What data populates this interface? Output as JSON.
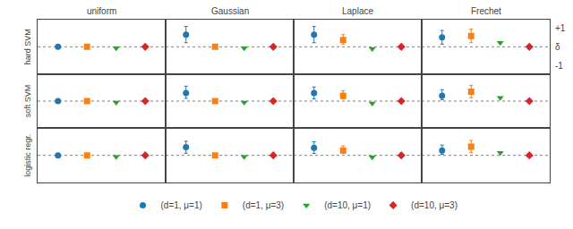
{
  "chart_data": {
    "type": "scatter",
    "columns": [
      "uniform",
      "Gaussian",
      "Laplace",
      "Frechet"
    ],
    "rows": [
      "hard SVM",
      "soft SVM",
      "logistic regr."
    ],
    "right_labels": [
      "+1",
      "δ",
      "-1"
    ],
    "ylim": [
      -1.0,
      1.0
    ],
    "tick_labels": false,
    "grid": false,
    "legend": "bottom",
    "reference_y": 0.0,
    "series": [
      {
        "name": "(d=1, μ=1)",
        "color": "#1f77b4",
        "marker": "circle",
        "values": [
          [
            0.0,
            0.45,
            0.45,
            0.35
          ],
          [
            0.0,
            0.3,
            0.3,
            0.2
          ],
          [
            0.0,
            0.3,
            0.28,
            0.18
          ]
        ],
        "lower": [
          [
            null,
            0.15,
            0.15,
            0.1
          ],
          [
            null,
            0.1,
            0.08,
            0.05
          ],
          [
            null,
            0.08,
            0.07,
            0.04
          ]
        ],
        "upper": [
          [
            null,
            0.75,
            0.75,
            0.6
          ],
          [
            null,
            0.55,
            0.52,
            0.42
          ],
          [
            null,
            0.52,
            0.5,
            0.38
          ]
        ]
      },
      {
        "name": "(d=1, μ=3)",
        "color": "#ff7f0e",
        "marker": "square",
        "values": [
          [
            0.0,
            0.0,
            0.25,
            0.4
          ],
          [
            0.0,
            0.0,
            0.2,
            0.35
          ],
          [
            0.0,
            0.0,
            0.18,
            0.32
          ]
        ],
        "lower": [
          [
            null,
            null,
            0.1,
            0.15
          ],
          [
            null,
            null,
            0.08,
            0.12
          ],
          [
            null,
            null,
            0.07,
            0.1
          ]
        ],
        "upper": [
          [
            null,
            null,
            0.45,
            0.65
          ],
          [
            null,
            null,
            0.38,
            0.58
          ],
          [
            null,
            null,
            0.35,
            0.55
          ]
        ]
      },
      {
        "name": "(d=10, μ=1)",
        "color": "#2ca02c",
        "marker": "triangle-down",
        "values": [
          [
            -0.05,
            -0.05,
            -0.07,
            0.15
          ],
          [
            -0.05,
            -0.05,
            -0.08,
            0.12
          ],
          [
            -0.05,
            -0.05,
            -0.07,
            0.1
          ]
        ]
      },
      {
        "name": "(d=10, μ=3)",
        "color": "#d62728",
        "marker": "diamond",
        "values": [
          [
            0.0,
            0.0,
            0.0,
            0.0
          ],
          [
            0.0,
            0.0,
            0.0,
            0.0
          ],
          [
            0.0,
            0.0,
            0.0,
            0.0
          ]
        ]
      }
    ]
  }
}
